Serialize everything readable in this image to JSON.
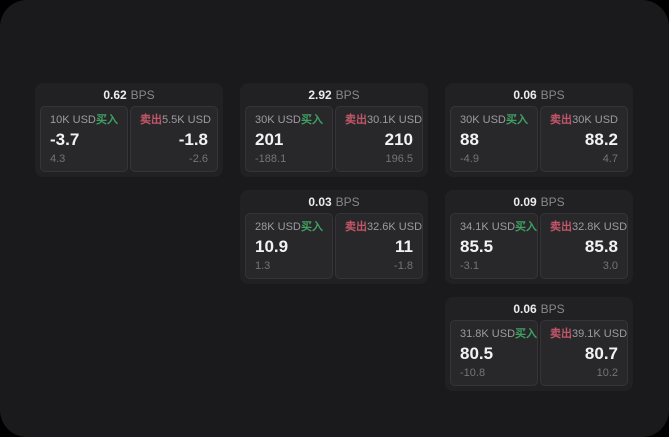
{
  "labels": {
    "bps": "BPS",
    "buy": "买入",
    "sell": "卖出"
  },
  "colors": {
    "outer_bg": "#000000",
    "panel_bg": "#1a1a1d",
    "card_bg": "#212124",
    "side_panel_bg": "#28282b",
    "buy_green": "#3fa061",
    "sell_red": "#c25668",
    "value_white": "#f2f2f4",
    "muted_gray": "#737379",
    "label_gray": "#9b9ba1"
  },
  "cards": [
    {
      "spread": "0.62",
      "grid": {
        "row": 0,
        "col": 0
      },
      "buy": {
        "size": "10K USD",
        "price": "-3.7",
        "delta": "4.3"
      },
      "sell": {
        "size": "5.5K USD",
        "price": "-1.8",
        "delta": "-2.6"
      }
    },
    {
      "spread": "2.92",
      "grid": {
        "row": 0,
        "col": 1
      },
      "buy": {
        "size": "30K USD",
        "price": "201",
        "delta": "-188.1"
      },
      "sell": {
        "size": "30.1K USD",
        "price": "210",
        "delta": "196.5"
      }
    },
    {
      "spread": "0.06",
      "grid": {
        "row": 0,
        "col": 2
      },
      "buy": {
        "size": "30K USD",
        "price": "88",
        "delta": "-4.9"
      },
      "sell": {
        "size": "30K USD",
        "price": "88.2",
        "delta": "4.7"
      }
    },
    {
      "spread": "0.03",
      "grid": {
        "row": 1,
        "col": 1
      },
      "buy": {
        "size": "28K USD",
        "price": "10.9",
        "delta": "1.3"
      },
      "sell": {
        "size": "32.6K USD",
        "price": "11",
        "delta": "-1.8"
      }
    },
    {
      "spread": "0.09",
      "grid": {
        "row": 1,
        "col": 2
      },
      "buy": {
        "size": "34.1K USD",
        "price": "85.5",
        "delta": "-3.1"
      },
      "sell": {
        "size": "32.8K USD",
        "price": "85.8",
        "delta": "3.0"
      }
    },
    {
      "spread": "0.06",
      "grid": {
        "row": 2,
        "col": 2
      },
      "buy": {
        "size": "31.8K USD",
        "price": "80.5",
        "delta": "-10.8"
      },
      "sell": {
        "size": "39.1K USD",
        "price": "80.7",
        "delta": "10.2"
      }
    }
  ]
}
